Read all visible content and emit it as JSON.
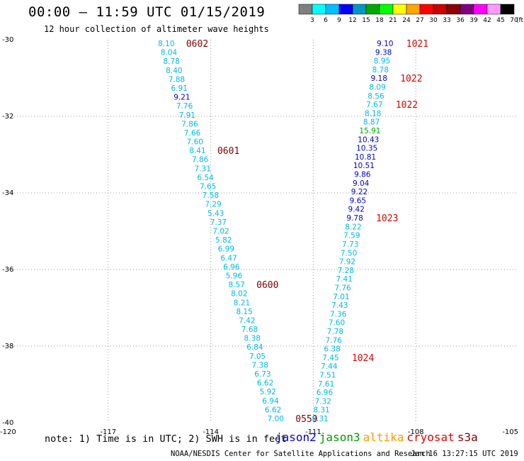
{
  "header": {
    "title": "00:00 – 11:59 UTC 01/15/2019",
    "subtitle": "12 hour collection of altimeter wave heights"
  },
  "colorbar": {
    "labels": [
      "3",
      "6",
      "9",
      "12",
      "15",
      "18",
      "21",
      "24",
      "27",
      "30",
      "33",
      "36",
      "39",
      "42",
      "45",
      "70"
    ],
    "unit": "(ft)",
    "colors": [
      "#7f7f7f",
      "#00ffff",
      "#00bfff",
      "#0000ff",
      "#0096c8",
      "#00aa00",
      "#00ff00",
      "#ffff00",
      "#ffa500",
      "#ff0000",
      "#c80000",
      "#8b0000",
      "#800080",
      "#ff00ff",
      "#ff99ff",
      "#000000"
    ]
  },
  "colors": {
    "cyan_label": "#00b8e8",
    "blue_label": "#0000cc",
    "green_label": "#00aa00",
    "time_label": "#800000",
    "pass_time_red": "#e00000",
    "grid": "#999999"
  },
  "map": {
    "lon_labels": [
      "-120",
      "-117",
      "-114",
      "-111",
      "-108",
      "-105"
    ],
    "lat_labels": [
      "-30",
      "-32",
      "-34",
      "-36",
      "-38",
      "-40"
    ],
    "lon_range": [
      -120,
      -105
    ],
    "lat_range": [
      -30,
      -40
    ],
    "tracks": [
      {
        "values": [
          "8.10",
          "8.04",
          "8.78",
          "8.40",
          "7.88",
          "6.91",
          "9.21",
          "7.76",
          "7.91",
          "7.86",
          "7.66",
          "7.60",
          "8.41",
          "7.86",
          "7.31",
          "6.54",
          "7.65",
          "7.58",
          "7.29",
          "5.43",
          "7.37",
          "7.02",
          "5.82",
          "6.99",
          "6.47",
          "6.96",
          "5.96",
          "8.57",
          "8.02",
          "8.21",
          "8.15",
          "7.42",
          "7.68",
          "8.38",
          "6.84",
          "7.05",
          "7.38",
          "6.73",
          "6.62",
          "5.92",
          "6.94",
          "6.62",
          "7.00"
        ],
        "colors": [
          "c",
          "c",
          "c",
          "c",
          "c",
          "c",
          "b",
          "c",
          "c",
          "c",
          "c",
          "c",
          "c",
          "c",
          "c",
          "c",
          "c",
          "c",
          "c",
          "c",
          "c",
          "c",
          "c",
          "c",
          "c",
          "c",
          "c",
          "c",
          "c",
          "c",
          "c",
          "c",
          "c",
          "c",
          "c",
          "c",
          "c",
          "c",
          "c",
          "c",
          "c",
          "c",
          "c"
        ],
        "start_lon": -115.3,
        "end_lon": -112.1,
        "times": [
          {
            "text": "0602",
            "index": 0
          },
          {
            "text": "0601",
            "index": 12
          },
          {
            "text": "0600",
            "index": 27
          },
          {
            "text": "0559",
            "index": 42
          }
        ]
      },
      {
        "values": [
          "9.10",
          "9.38",
          "8.95",
          "8.78",
          "9.18",
          "8.09",
          "8.56",
          "7.67",
          "8.18",
          "8.87",
          "15.91",
          "10.43",
          "10.35",
          "10.81",
          "10.51",
          "9.86",
          "9.04",
          "9.22",
          "9.65",
          "9.42",
          "9.78",
          "8.22",
          "7.59",
          "7.73",
          "7.50",
          "7.92",
          "7.28",
          "7.41",
          "7.76",
          "7.01",
          "7.43",
          "7.36",
          "7.60",
          "7.78",
          "7.76",
          "6.38",
          "7.45",
          "7.44",
          "7.51",
          "7.61",
          "6.96",
          "7.32",
          "8.31",
          "8.31"
        ],
        "colors": [
          "b",
          "b",
          "c",
          "c",
          "b",
          "c",
          "c",
          "c",
          "c",
          "c",
          "g",
          "b",
          "b",
          "b",
          "b",
          "b",
          "b",
          "b",
          "b",
          "b",
          "b",
          "c",
          "c",
          "c",
          "c",
          "c",
          "c",
          "c",
          "c",
          "c",
          "c",
          "c",
          "c",
          "c",
          "c",
          "c",
          "c",
          "c",
          "c",
          "c",
          "c",
          "c",
          "c",
          "c"
        ],
        "start_lon": -108.9,
        "end_lon": -110.8,
        "times": [
          {
            "text": "1021",
            "index": 0
          },
          {
            "text": "1022",
            "index": 4
          },
          {
            "text": "1022",
            "index": 7
          },
          {
            "text": "1023",
            "index": 20
          },
          {
            "text": "1024",
            "index": 36
          }
        ]
      }
    ]
  },
  "footer": {
    "note": "note: 1) Time is in UTC; 2) SWH is in feet",
    "legend": [
      {
        "name": "jason2",
        "color": "#0000ee"
      },
      {
        "name": "jason3",
        "color": "#009900"
      },
      {
        "name": "altika",
        "color": "#ff9900"
      },
      {
        "name": "cryosat",
        "color": "#ee0000"
      },
      {
        "name": "s3a",
        "color": "#880000"
      }
    ],
    "credit": "NOAA/NESDIS Center for Satellite Applications and Research",
    "timestamp": "Jan 16 13:27:15 UTC 2019"
  }
}
